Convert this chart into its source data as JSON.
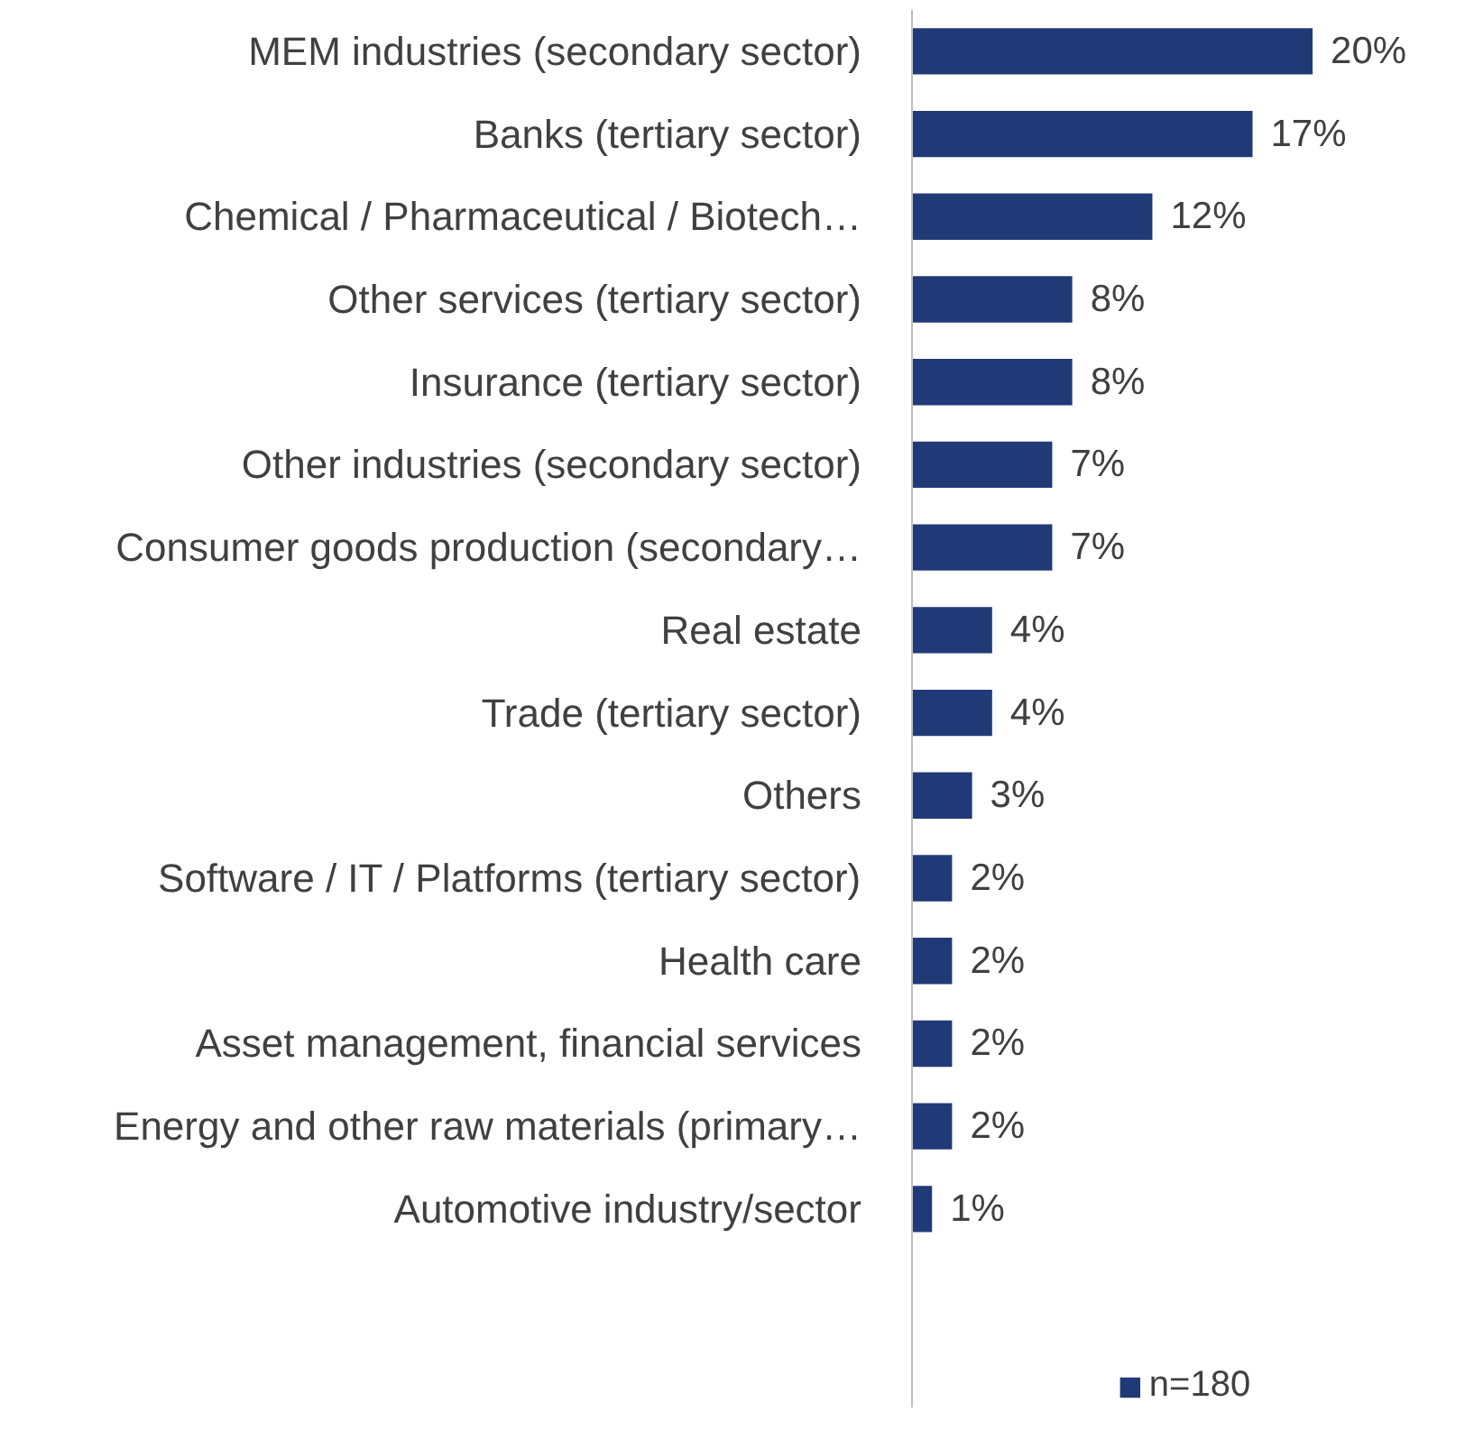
{
  "chart_data": {
    "type": "bar",
    "orientation": "horizontal",
    "categories": [
      "MEM industries (secondary sector)",
      "Banks (tertiary sector)",
      "Chemical / Pharmaceutical / Biotech…",
      "Other services (tertiary sector)",
      "Insurance (tertiary sector)",
      "Other industries (secondary sector)",
      "Consumer goods production (secondary…",
      "Real estate",
      "Trade (tertiary sector)",
      "Others",
      "Software / IT / Platforms (tertiary sector)",
      "Health care",
      "Asset management, financial services",
      "Energy and other raw materials (primary…",
      "Automotive industry/sector"
    ],
    "series": [
      {
        "name": "n=180",
        "color": "#203a78",
        "values": [
          20,
          17,
          12,
          8,
          8,
          7,
          7,
          4,
          4,
          3,
          2,
          2,
          2,
          2,
          1
        ],
        "value_labels": [
          "20%",
          "17%",
          "12%",
          "8%",
          "8%",
          "7%",
          "7%",
          "4%",
          "4%",
          "3%",
          "2%",
          "2%",
          "2%",
          "2%",
          "1%"
        ]
      }
    ],
    "legend": "bottom",
    "grid": false
  }
}
